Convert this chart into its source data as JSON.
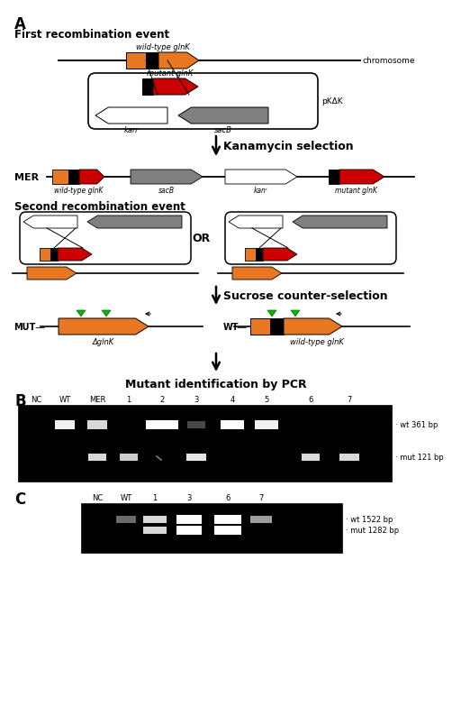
{
  "panel_A_label": "A",
  "panel_B_label": "B",
  "panel_C_label": "C",
  "title_first_recomb": "First recombination event",
  "title_second_recomb": "Second recombination event",
  "label_kanamycin": "Kanamycin selection",
  "label_sucrose": "Sucrose counter-selection",
  "label_pcr": "Mutant identification by PCR",
  "label_mer": "MER",
  "label_mut": "MUT",
  "label_wt_label": "WT",
  "label_chromosome": "chromosome",
  "label_pkdk": "pKΔK",
  "label_kanr": "kanʳ",
  "label_sacB": "sacB",
  "label_wildtype_glnK_chr": "wild-type glnK",
  "label_mutant_glnK_chr": "mutant glnK",
  "label_wildtype_glnK_mer": "wild-type glnK",
  "label_sacB_mer": "sacB",
  "label_kanr_mer": "kanʳ",
  "label_mutant_glnK_mer": "mutant glnK",
  "label_delta_glnK": "ΔglnK",
  "label_wildtype_glnK_wt": "wild-type glnK",
  "label_wt_361": "wt 361 bp",
  "label_mut_121": "mut 121 bp",
  "label_wt_1522": "wt 1522 bp",
  "label_mut_1282": "mut 1282 bp",
  "gel_B_lanes": [
    "NC",
    "WT",
    "MER",
    "1",
    "2",
    "3",
    "4",
    "5",
    "6",
    "7"
  ],
  "gel_C_lanes": [
    "NC",
    "WT",
    "1",
    "3",
    "6",
    "7"
  ],
  "color_orange": "#E87722",
  "color_red": "#CC0000",
  "color_black": "#000000",
  "color_gray": "#808080",
  "color_white": "#FFFFFF",
  "color_green": "#00BB00",
  "background": "#FFFFFF"
}
